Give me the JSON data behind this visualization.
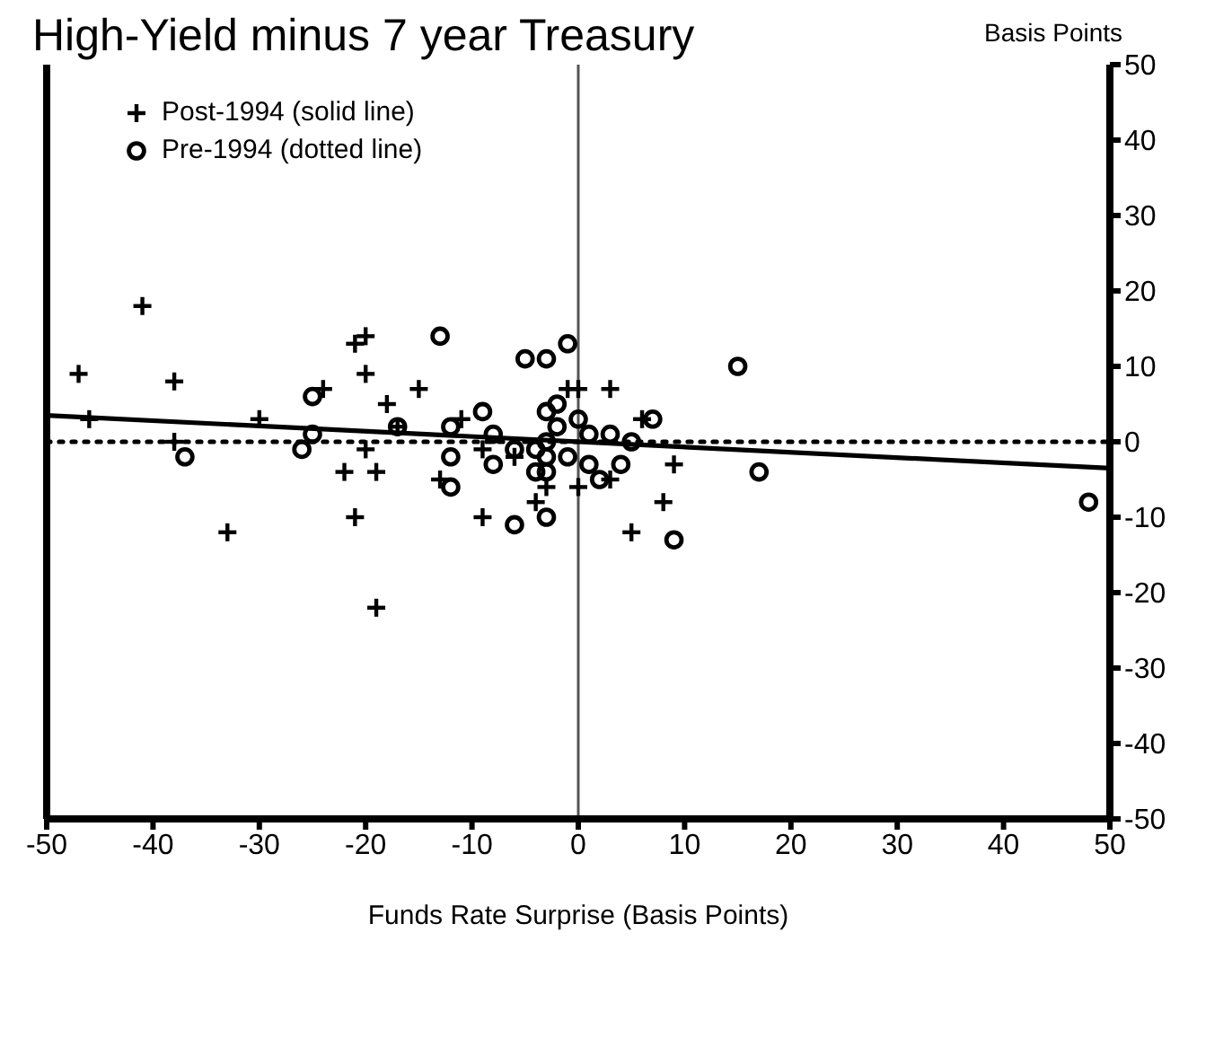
{
  "chart_data": {
    "type": "scatter",
    "title": "High-Yield minus 7 year Treasury",
    "xlabel": "Funds Rate Surprise (Basis Points)",
    "ylabel": "Basis Points",
    "xlim": [
      -50,
      50
    ],
    "xticks": [
      -50,
      -40,
      -30,
      -20,
      -10,
      0,
      10,
      20,
      30,
      40,
      50
    ],
    "ylim": [
      -50,
      50
    ],
    "yticks": [
      -50,
      -40,
      -30,
      -20,
      -10,
      0,
      10,
      20,
      30,
      40,
      50
    ],
    "grid": false,
    "legend": "top left",
    "ref_lines": [
      {
        "axis": "x",
        "value": 0,
        "color": "#555555"
      }
    ],
    "series": [
      {
        "name": "Post-1994 (solid line)",
        "type": "scatter",
        "marker": "cross",
        "color": "#000000",
        "x": [
          -47,
          -46,
          -41,
          -38,
          -38,
          -30,
          -33,
          -24,
          -21,
          -20,
          -20,
          -18,
          -17,
          -20,
          -22,
          -19,
          -21,
          -19,
          -15,
          -11,
          -9,
          -6,
          -1,
          0,
          3,
          -3,
          -4,
          -9,
          -13,
          0,
          3,
          6,
          9,
          8,
          5
        ],
        "values": [
          9,
          3,
          18,
          8,
          0,
          3,
          -12,
          7,
          13,
          14,
          9,
          5,
          2,
          -1,
          -4,
          -4,
          -10,
          -22,
          7,
          3,
          -1,
          -2,
          7,
          7,
          7,
          -6,
          -8,
          -10,
          -5,
          -6,
          -5,
          3,
          -3,
          -8,
          -12
        ]
      },
      {
        "name": "Pre-1994 (dotted line)",
        "type": "scatter",
        "marker": "circle",
        "color": "#000000",
        "x": [
          -37,
          -25,
          -25,
          -26,
          -17,
          -13,
          -12,
          -9,
          -8,
          -12,
          -8,
          -6,
          -5,
          -3,
          -1,
          -3,
          -2,
          -2,
          0,
          -4,
          -3,
          -3,
          -1,
          -4,
          -3,
          -3,
          -6,
          -12,
          1,
          3,
          1,
          2,
          4,
          5,
          7,
          9,
          15,
          17,
          48
        ],
        "values": [
          -2,
          6,
          1,
          -1,
          2,
          14,
          2,
          4,
          1,
          -2,
          -3,
          -1,
          11,
          11,
          13,
          4,
          5,
          2,
          3,
          -1,
          0,
          -2,
          -2,
          -4,
          -4,
          -10,
          -11,
          -6,
          1,
          1,
          -3,
          -5,
          -3,
          0,
          3,
          -13,
          10,
          -4,
          -8
        ]
      },
      {
        "type": "line",
        "line_style": "solid",
        "marker": "none",
        "color": "#000000",
        "x": [
          -50,
          50
        ],
        "values": [
          3.5,
          -3.5
        ]
      },
      {
        "type": "line",
        "line_style": "dotted",
        "marker": "none",
        "color": "#000000",
        "x": [
          -50,
          50
        ],
        "values": [
          0,
          0
        ]
      }
    ]
  }
}
